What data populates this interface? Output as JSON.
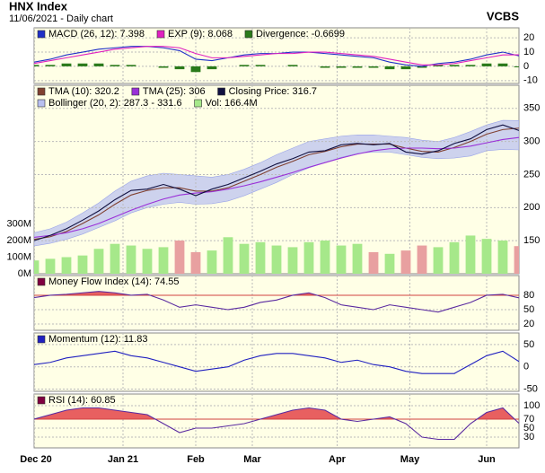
{
  "chart_data": {
    "type": "stock",
    "title": "HNX Index",
    "subtitle": "11/06/2021 - Daily chart",
    "source": "VCBS",
    "x": [
      0,
      4,
      8,
      12,
      16,
      20,
      24,
      28,
      32,
      36,
      40,
      44,
      48,
      52,
      56,
      60,
      64,
      68,
      72,
      76,
      80,
      84,
      88,
      92,
      96,
      100,
      104,
      108,
      112,
      116,
      120
    ],
    "xlim": [
      0,
      120
    ],
    "xticks": [
      {
        "value": 0,
        "label": "Dec 20"
      },
      {
        "value": 22,
        "label": "Jan 21"
      },
      {
        "value": 40,
        "label": "Feb"
      },
      {
        "value": 54,
        "label": "Mar"
      },
      {
        "value": 75,
        "label": "Apr"
      },
      {
        "value": 93,
        "label": "May"
      },
      {
        "value": 112,
        "label": "Jun"
      }
    ],
    "grid": true,
    "background": "#ffffe6",
    "panels": [
      {
        "ylim": [
          -12,
          27
        ],
        "yticks": [
          20,
          10,
          0,
          -10
        ],
        "series": [
          {
            "name": "MACD (26, 12): 7.398",
            "type": "line",
            "color": "#2030c8",
            "values": [
              3,
              5,
              8,
              10,
              12,
              13,
              14,
              14,
              13,
              11,
              5,
              4,
              6,
              8,
              9,
              9,
              10,
              10,
              9,
              8,
              7,
              6,
              3,
              1,
              0,
              2,
              3,
              5,
              8,
              10,
              7.398
            ]
          },
          {
            "name": "EXP (9): 8.068",
            "type": "line",
            "color": "#e020c0",
            "values": [
              2,
              4,
              6,
              8,
              10,
              12,
              13,
              14,
              14,
              13,
              9,
              6,
              6,
              7,
              8,
              9,
              9,
              10,
              10,
              9,
              8,
              7,
              5,
              3,
              1,
              1,
              2,
              4,
              6,
              8,
              8.068
            ]
          },
          {
            "name": "Divergence: -0.6699",
            "type": "bar",
            "color": "#2a7a1a",
            "values": [
              1,
              1,
              2,
              2,
              2,
              1,
              1,
              0,
              -1,
              -2,
              -4,
              -2,
              0,
              1,
              1,
              0,
              1,
              0,
              -1,
              -1,
              -1,
              -1,
              -2,
              -2,
              -1,
              1,
              1,
              1,
              2,
              2,
              -0.6699
            ]
          }
        ]
      },
      {
        "ylim": [
          100,
          385
        ],
        "yticks": [
          350,
          300,
          250,
          200,
          150
        ],
        "y2lim": [
          0,
          1135
        ],
        "y2ticks": [
          {
            "value": 300,
            "label": "300M"
          },
          {
            "value": 200,
            "label": "200M"
          },
          {
            "value": 100,
            "label": "100M"
          },
          {
            "value": 0,
            "label": "0M"
          }
        ],
        "series": [
          {
            "name": "TMA (10): 320.2",
            "type": "line",
            "color": "#804030",
            "values": [
              152,
              156,
              164,
              176,
              189,
              205,
              219,
              226,
              230,
              230,
              225,
              225,
              230,
              240,
              250,
              261,
              270,
              280,
              285,
              292,
              296,
              296,
              296,
              290,
              285,
              284,
              291,
              300,
              311,
              318,
              320.2
            ]
          },
          {
            "name": "TMA (25): 306",
            "type": "line",
            "color": "#9a30d8",
            "values": [
              155,
              158,
              162,
              168,
              176,
              186,
              196,
              205,
              213,
              219,
              222,
              224,
              228,
              233,
              239,
              246,
              253,
              261,
              268,
              275,
              281,
              286,
              289,
              290,
              290,
              289,
              290,
              293,
              298,
              303,
              306
            ]
          },
          {
            "name": "Closing Price: 316.7",
            "type": "line",
            "color": "#101040",
            "values": [
              150,
              158,
              168,
              181,
              195,
              212,
              226,
              228,
              235,
              228,
              218,
              228,
              235,
              245,
              255,
              266,
              274,
              284,
              286,
              295,
              297,
              295,
              297,
              284,
              281,
              286,
              297,
              304,
              318,
              325,
              316.7
            ]
          },
          {
            "name": "Bollinger (20, 2): 287.3 - 331.6",
            "type": "band",
            "color": "#b8bff0",
            "upper": [
              162,
              168,
              178,
              192,
              207,
              225,
              240,
              248,
              252,
              250,
              248,
              246,
              250,
              258,
              268,
              280,
              290,
              300,
              304,
              308,
              310,
              310,
              308,
              306,
              302,
              300,
              306,
              315,
              325,
              332,
              331.6
            ],
            "lower": [
              142,
              146,
              152,
              160,
              170,
              180,
              192,
              200,
              205,
              208,
              205,
              206,
              210,
              218,
              228,
              238,
              250,
              260,
              268,
              276,
              282,
              284,
              284,
              280,
              276,
              274,
              275,
              278,
              286,
              288,
              287.3
            ]
          },
          {
            "name": "Vol: 166.4M",
            "type": "bar",
            "axis": "y2",
            "color": "#a6e88a",
            "down_color": "#e8a0a0",
            "values": [
              80,
              90,
              100,
              110,
              150,
              180,
              170,
              150,
              160,
              200,
              130,
              140,
              220,
              180,
              190,
              170,
              160,
              190,
              200,
              170,
              180,
              130,
              120,
              140,
              170,
              160,
              190,
              230,
              210,
              200,
              166.4
            ]
          }
        ]
      },
      {
        "ylim": [
          7,
          121
        ],
        "yticks": [
          80,
          50,
          20
        ],
        "overbought": 80,
        "fill_color": "#e86060",
        "series": [
          {
            "name": "Money Flow Index (14): 74.55",
            "type": "line",
            "color": "#5a2aa0",
            "key_color": "#800040",
            "values": [
              75,
              80,
              82,
              85,
              88,
              85,
              80,
              82,
              70,
              55,
              60,
              55,
              50,
              55,
              65,
              70,
              80,
              85,
              75,
              60,
              55,
              50,
              60,
              55,
              50,
              45,
              55,
              65,
              80,
              82,
              74.55
            ]
          }
        ]
      },
      {
        "ylim": [
          -55,
          76
        ],
        "yticks": [
          50,
          0,
          -50
        ],
        "series": [
          {
            "name": "Momentum (12): 11.83",
            "type": "line",
            "color": "#2020c0",
            "values": [
              5,
              10,
              20,
              25,
              30,
              35,
              25,
              20,
              10,
              0,
              -10,
              -5,
              0,
              15,
              25,
              30,
              30,
              25,
              20,
              10,
              15,
              5,
              0,
              -10,
              -15,
              -15,
              -15,
              5,
              25,
              35,
              11.83
            ]
          }
        ]
      },
      {
        "ylim": [
          6,
          126
        ],
        "yticks": [
          100,
          70,
          50,
          30
        ],
        "overbought": 70,
        "fill_color": "#e86060",
        "series": [
          {
            "name": "RSI (14): 60.85",
            "type": "line",
            "color": "#5a2aa0",
            "key_color": "#800040",
            "values": [
              70,
              80,
              90,
              95,
              95,
              90,
              85,
              80,
              60,
              40,
              50,
              50,
              55,
              60,
              70,
              80,
              90,
              95,
              90,
              70,
              65,
              70,
              75,
              60,
              30,
              25,
              25,
              60,
              85,
              95,
              60.85
            ]
          }
        ]
      }
    ]
  }
}
